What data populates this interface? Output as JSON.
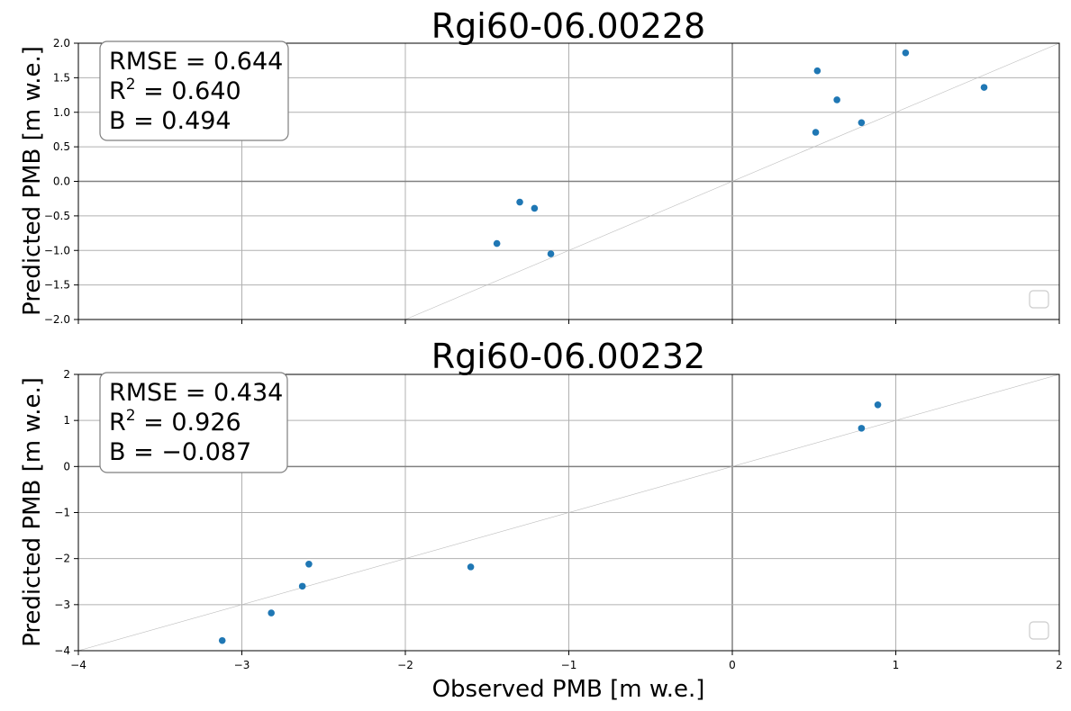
{
  "chart_data": [
    {
      "type": "scatter",
      "title": "Rgi60-06.00228",
      "ylabel": "Predicted PMB [m w.e.]",
      "xlabel": "",
      "xlim": [
        -4,
        2
      ],
      "ylim": [
        -2.0,
        2.0
      ],
      "xticks": [
        -4,
        -3,
        -2,
        -1,
        0,
        1,
        2
      ],
      "xtick_labels_visible": false,
      "yticks": [
        -2.0,
        -1.5,
        -1.0,
        -0.5,
        0.0,
        0.5,
        1.0,
        1.5,
        2.0
      ],
      "ytick_labels": [
        "−2.0",
        "−1.5",
        "−1.0",
        "−0.5",
        "0.0",
        "0.5",
        "1.0",
        "1.5",
        "2.0"
      ],
      "grid": true,
      "identity_line": true,
      "legend": "bottom-right (empty)",
      "point_color": "#1f77b4",
      "points": [
        {
          "x": -1.44,
          "y": -0.9
        },
        {
          "x": -1.3,
          "y": -0.3
        },
        {
          "x": -1.21,
          "y": -0.39
        },
        {
          "x": -1.11,
          "y": -1.05
        },
        {
          "x": 0.51,
          "y": 0.71
        },
        {
          "x": 0.52,
          "y": 1.6
        },
        {
          "x": 0.64,
          "y": 1.18
        },
        {
          "x": 0.79,
          "y": 0.85
        },
        {
          "x": 1.06,
          "y": 1.86
        },
        {
          "x": 1.54,
          "y": 1.36
        }
      ],
      "stats": {
        "rmse_label": "RMSE = 0.644",
        "r2_prefix": "R",
        "r2_sup": "2",
        "r2_value": " = 0.640",
        "bias_label": "B = 0.494"
      }
    },
    {
      "type": "scatter",
      "title": "Rgi60-06.00232",
      "ylabel": "Predicted PMB [m w.e.]",
      "xlabel": "Observed PMB [m w.e.]",
      "xlim": [
        -4,
        2
      ],
      "ylim": [
        -4,
        2
      ],
      "xticks": [
        -4,
        -3,
        -2,
        -1,
        0,
        1,
        2
      ],
      "xtick_labels": [
        "−4",
        "−3",
        "−2",
        "−1",
        "0",
        "1",
        "2"
      ],
      "yticks": [
        -4,
        -3,
        -2,
        -1,
        0,
        1,
        2
      ],
      "ytick_labels": [
        "−4",
        "−3",
        "−2",
        "−1",
        "0",
        "1",
        "2"
      ],
      "grid": true,
      "identity_line": true,
      "legend": "bottom-right (empty)",
      "point_color": "#1f77b4",
      "points": [
        {
          "x": -3.12,
          "y": -3.78
        },
        {
          "x": -2.82,
          "y": -3.18
        },
        {
          "x": -2.63,
          "y": -2.6
        },
        {
          "x": -2.59,
          "y": -2.12
        },
        {
          "x": -1.6,
          "y": -2.18
        },
        {
          "x": 0.79,
          "y": 0.83
        },
        {
          "x": 0.89,
          "y": 1.34
        }
      ],
      "stats": {
        "rmse_label": "RMSE = 0.434",
        "r2_prefix": "R",
        "r2_sup": "2",
        "r2_value": " = 0.926",
        "bias_label": "B = −0.087"
      }
    }
  ]
}
